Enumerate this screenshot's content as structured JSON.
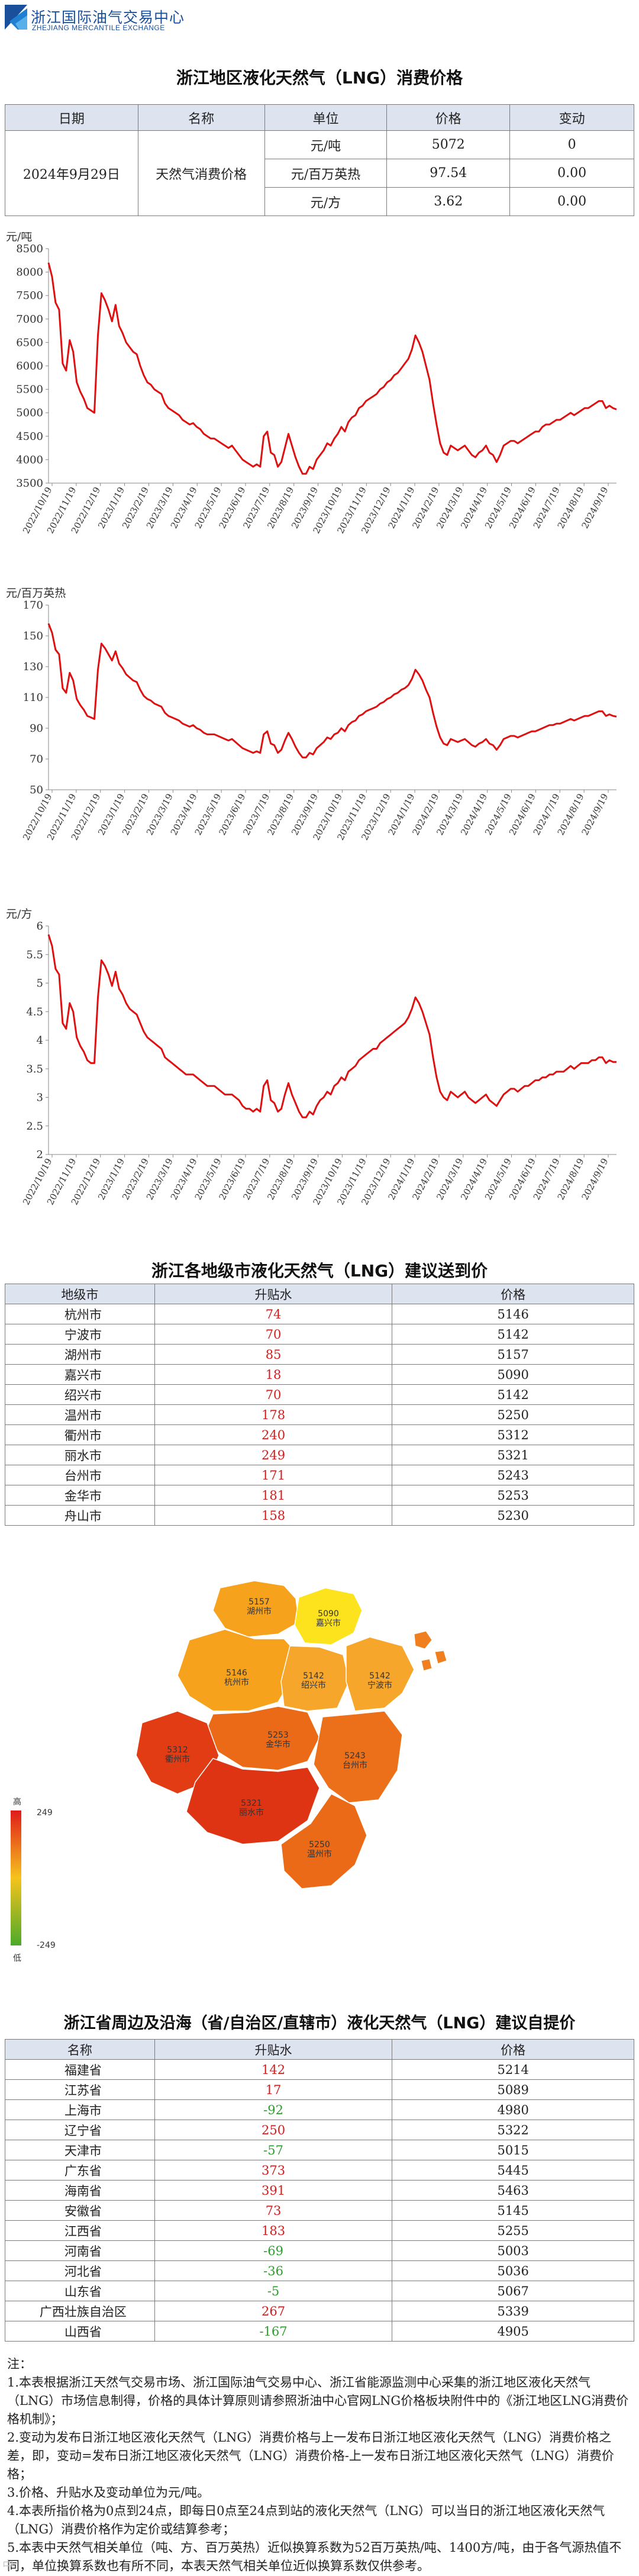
{
  "header": {
    "org_cn": "浙江国际油气交易中心",
    "org_en": "ZHEJIANG MERCANTILE EXCHANGE"
  },
  "consumption": {
    "title": "浙江地区液化天然气（LNG）消费价格",
    "headers": [
      "日期",
      "名称",
      "单位",
      "价格",
      "变动"
    ],
    "date": "2024年9月29日",
    "name": "天然气消费价格",
    "rows": [
      {
        "unit": "元/吨",
        "price": "5072",
        "change": "0"
      },
      {
        "unit": "元/百万英热",
        "price": "97.54",
        "change": "0.00"
      },
      {
        "unit": "元/方",
        "price": "3.62",
        "change": "0.00"
      }
    ]
  },
  "chart_data": [
    {
      "type": "line",
      "unit_label": "元/吨",
      "ylim": [
        3500,
        8500
      ],
      "yticks": [
        3500,
        4000,
        4500,
        5000,
        5500,
        6000,
        6500,
        7000,
        7500,
        8000,
        8500
      ],
      "x_labels": [
        "2022/10/19",
        "2022/11/19",
        "2022/12/19",
        "2023/1/19",
        "2023/2/19",
        "2023/3/19",
        "2023/4/19",
        "2023/5/19",
        "2023/6/19",
        "2023/7/19",
        "2023/8/19",
        "2023/9/19",
        "2023/10/19",
        "2023/11/19",
        "2023/12/19",
        "2024/1/19",
        "2024/2/19",
        "2024/3/19",
        "2024/4/19",
        "2024/5/19",
        "2024/6/19",
        "2024/7/19",
        "2024/8/19",
        "2024/9/19"
      ],
      "color": "#dd1111",
      "series": [
        {
          "values": [
            8200,
            7900,
            7350,
            7200,
            6050,
            5900,
            6550,
            6300,
            5650,
            5450,
            5300,
            5100,
            5050,
            5000,
            6650,
            7550,
            7400,
            7200,
            6950,
            7300,
            6850,
            6700,
            6500,
            6400,
            6300,
            6250,
            6000,
            5800,
            5650,
            5600,
            5500,
            5450,
            5400,
            5200,
            5100,
            5050,
            5000,
            4950,
            4850,
            4800,
            4750,
            4780,
            4700,
            4650,
            4550,
            4500,
            4450,
            4450,
            4400,
            4350,
            4300,
            4250,
            4300,
            4200,
            4100,
            4000,
            3950,
            3900,
            3850,
            3900,
            3850,
            4500,
            4600,
            4150,
            4100,
            3850,
            3950,
            4250,
            4550,
            4300,
            4050,
            3850,
            3700,
            3700,
            3850,
            3800,
            4000,
            4100,
            4200,
            4350,
            4300,
            4450,
            4550,
            4700,
            4600,
            4800,
            4900,
            4950,
            5100,
            5150,
            5250,
            5300,
            5350,
            5400,
            5500,
            5550,
            5650,
            5700,
            5800,
            5850,
            5950,
            6050,
            6150,
            6350,
            6650,
            6500,
            6300,
            6000,
            5700,
            5200,
            4750,
            4350,
            4150,
            4100,
            4300,
            4250,
            4200,
            4250,
            4300,
            4200,
            4100,
            4050,
            4150,
            4200,
            4300,
            4150,
            4100,
            3950,
            4100,
            4300,
            4350,
            4400,
            4400,
            4350,
            4400,
            4450,
            4500,
            4550,
            4600,
            4600,
            4700,
            4750,
            4750,
            4800,
            4850,
            4850,
            4900,
            4950,
            5000,
            4950,
            5000,
            5050,
            5100,
            5100,
            5150,
            5200,
            5250,
            5250,
            5100,
            5150,
            5100,
            5072
          ]
        }
      ]
    },
    {
      "type": "line",
      "unit_label": "元/百万英热",
      "ylim": [
        50,
        170
      ],
      "yticks": [
        50,
        70,
        90,
        110,
        130,
        150,
        170
      ],
      "x_labels": [
        "2022/10/19",
        "2022/11/19",
        "2022/12/19",
        "2023/1/19",
        "2023/2/19",
        "2023/3/19",
        "2023/4/19",
        "2023/5/19",
        "2023/6/19",
        "2023/7/19",
        "2023/8/19",
        "2023/9/19",
        "2023/10/19",
        "2023/11/19",
        "2023/12/19",
        "2024/1/19",
        "2024/2/19",
        "2024/3/19",
        "2024/4/19",
        "2024/5/19",
        "2024/6/19",
        "2024/7/19",
        "2024/8/19",
        "2024/9/19"
      ],
      "color": "#dd1111",
      "series": [
        {
          "values": [
            158,
            152,
            141,
            138,
            116,
            113,
            126,
            121,
            109,
            105,
            102,
            98,
            97,
            96,
            128,
            145,
            142,
            138,
            134,
            140,
            132,
            129,
            125,
            123,
            121,
            120,
            115,
            111,
            109,
            108,
            106,
            105,
            104,
            100,
            98,
            97,
            96,
            95,
            93,
            92,
            91,
            92,
            90,
            89,
            87,
            86,
            86,
            86,
            85,
            84,
            83,
            82,
            83,
            81,
            79,
            77,
            76,
            75,
            74,
            75,
            74,
            86,
            88,
            80,
            79,
            74,
            76,
            82,
            87,
            83,
            78,
            74,
            71,
            71,
            74,
            73,
            77,
            79,
            81,
            84,
            83,
            86,
            87,
            90,
            88,
            92,
            94,
            95,
            98,
            99,
            101,
            102,
            103,
            104,
            106,
            107,
            109,
            110,
            112,
            113,
            115,
            116,
            118,
            122,
            128,
            125,
            121,
            115,
            110,
            100,
            91,
            84,
            80,
            79,
            83,
            82,
            81,
            82,
            83,
            81,
            79,
            78,
            80,
            81,
            83,
            80,
            79,
            76,
            79,
            83,
            84,
            85,
            85,
            84,
            85,
            86,
            87,
            88,
            88,
            89,
            90,
            91,
            92,
            92,
            93,
            93,
            94,
            95,
            96,
            95,
            96,
            97,
            98,
            98,
            99,
            100,
            101,
            101,
            98,
            99,
            98,
            97.54
          ]
        }
      ]
    },
    {
      "type": "line",
      "unit_label": "元/方",
      "ylim": [
        2,
        6
      ],
      "yticks": [
        2,
        2.5,
        3,
        3.5,
        4,
        4.5,
        5,
        5.5,
        6
      ],
      "x_labels": [
        "2022/10/19",
        "2022/11/19",
        "2022/12/19",
        "2023/1/19",
        "2023/2/19",
        "2023/3/19",
        "2023/4/19",
        "2023/5/19",
        "2023/6/19",
        "2023/7/19",
        "2023/8/19",
        "2023/9/19",
        "2023/10/19",
        "2023/11/19",
        "2023/12/19",
        "2024/1/19",
        "2024/2/19",
        "2024/3/19",
        "2024/4/19",
        "2024/5/19",
        "2024/6/19",
        "2024/7/19",
        "2024/8/19",
        "2024/9/19"
      ],
      "color": "#dd1111",
      "series": [
        {
          "values": [
            5.85,
            5.65,
            5.25,
            5.15,
            4.3,
            4.2,
            4.65,
            4.5,
            4.05,
            3.9,
            3.8,
            3.65,
            3.6,
            3.6,
            4.75,
            5.4,
            5.3,
            5.15,
            4.95,
            5.2,
            4.9,
            4.8,
            4.65,
            4.55,
            4.5,
            4.45,
            4.3,
            4.15,
            4.05,
            4.0,
            3.95,
            3.9,
            3.85,
            3.7,
            3.65,
            3.6,
            3.55,
            3.5,
            3.45,
            3.4,
            3.4,
            3.4,
            3.35,
            3.3,
            3.25,
            3.2,
            3.2,
            3.2,
            3.15,
            3.1,
            3.05,
            3.05,
            3.05,
            3.0,
            2.95,
            2.85,
            2.8,
            2.8,
            2.75,
            2.8,
            2.75,
            3.2,
            3.3,
            2.95,
            2.9,
            2.75,
            2.8,
            3.05,
            3.25,
            3.05,
            2.9,
            2.75,
            2.65,
            2.65,
            2.75,
            2.7,
            2.85,
            2.95,
            3.0,
            3.1,
            3.05,
            3.2,
            3.25,
            3.35,
            3.3,
            3.45,
            3.5,
            3.55,
            3.65,
            3.7,
            3.75,
            3.8,
            3.85,
            3.85,
            3.95,
            4.0,
            4.05,
            4.1,
            4.15,
            4.2,
            4.25,
            4.3,
            4.4,
            4.55,
            4.75,
            4.65,
            4.5,
            4.3,
            4.1,
            3.7,
            3.35,
            3.1,
            3.0,
            2.95,
            3.1,
            3.05,
            3.0,
            3.05,
            3.1,
            3.0,
            2.95,
            2.9,
            2.95,
            3.0,
            3.05,
            2.95,
            2.9,
            2.85,
            2.95,
            3.05,
            3.1,
            3.15,
            3.15,
            3.1,
            3.15,
            3.2,
            3.2,
            3.25,
            3.3,
            3.3,
            3.35,
            3.35,
            3.4,
            3.4,
            3.45,
            3.45,
            3.45,
            3.5,
            3.55,
            3.5,
            3.55,
            3.6,
            3.6,
            3.6,
            3.65,
            3.65,
            3.7,
            3.7,
            3.6,
            3.65,
            3.62,
            3.62
          ]
        }
      ]
    }
  ],
  "cities": {
    "title": "浙江各地级市液化天然气（LNG）建议送到价",
    "headers": [
      "地级市",
      "升贴水",
      "价格"
    ],
    "rows": [
      {
        "name": "杭州市",
        "diff": "74",
        "price": "5146"
      },
      {
        "name": "宁波市",
        "diff": "70",
        "price": "5142"
      },
      {
        "name": "湖州市",
        "diff": "85",
        "price": "5157"
      },
      {
        "name": "嘉兴市",
        "diff": "18",
        "price": "5090"
      },
      {
        "name": "绍兴市",
        "diff": "70",
        "price": "5142"
      },
      {
        "name": "温州市",
        "diff": "178",
        "price": "5250"
      },
      {
        "name": "衢州市",
        "diff": "240",
        "price": "5312"
      },
      {
        "name": "丽水市",
        "diff": "249",
        "price": "5321"
      },
      {
        "name": "台州市",
        "diff": "171",
        "price": "5243"
      },
      {
        "name": "金华市",
        "diff": "181",
        "price": "5253"
      },
      {
        "name": "舟山市",
        "diff": "158",
        "price": "5230"
      }
    ]
  },
  "map": {
    "legend_high_label": "高",
    "legend_low_label": "低",
    "legend_max": "249",
    "legend_min": "-249",
    "regions": [
      {
        "price": "5157",
        "city": "湖州市",
        "color": "#f7a21c"
      },
      {
        "price": "5090",
        "city": "嘉兴市",
        "color": "#fde31e"
      },
      {
        "price": "5146",
        "city": "杭州市",
        "color": "#f7a21c"
      },
      {
        "price": "5142",
        "city": "绍兴市",
        "color": "#f6a62a"
      },
      {
        "price": "5142",
        "city": "宁波市",
        "color": "#f6a62a"
      },
      {
        "price": "5253",
        "city": "金华市",
        "color": "#ea6a17"
      },
      {
        "price": "5312",
        "city": "衢州市",
        "color": "#e23c14"
      },
      {
        "price": "5243",
        "city": "台州市",
        "color": "#ec6f1a"
      },
      {
        "price": "5321",
        "city": "丽水市",
        "color": "#df3414"
      },
      {
        "price": "5250",
        "city": "温州市",
        "color": "#ea6a17"
      },
      {
        "price": "5230",
        "city": "舟山市",
        "color": "#f07f20"
      }
    ]
  },
  "provinces": {
    "title": "浙江省周边及沿海（省/自治区/直辖市）液化天然气（LNG）建议自提价",
    "headers": [
      "名称",
      "升贴水",
      "价格"
    ],
    "rows": [
      {
        "name": "福建省",
        "diff": "142",
        "price": "5214"
      },
      {
        "name": "江苏省",
        "diff": "17",
        "price": "5089"
      },
      {
        "name": "上海市",
        "diff": "-92",
        "price": "4980"
      },
      {
        "name": "辽宁省",
        "diff": "250",
        "price": "5322"
      },
      {
        "name": "天津市",
        "diff": "-57",
        "price": "5015"
      },
      {
        "name": "广东省",
        "diff": "373",
        "price": "5445"
      },
      {
        "name": "海南省",
        "diff": "391",
        "price": "5463"
      },
      {
        "name": "安徽省",
        "diff": "73",
        "price": "5145"
      },
      {
        "name": "江西省",
        "diff": "183",
        "price": "5255"
      },
      {
        "name": "河南省",
        "diff": "-69",
        "price": "5003"
      },
      {
        "name": "河北省",
        "diff": "-36",
        "price": "5036"
      },
      {
        "name": "山东省",
        "diff": "-5",
        "price": "5067"
      },
      {
        "name": "广西壮族自治区",
        "diff": "267",
        "price": "5339"
      },
      {
        "name": "山西省",
        "diff": "-167",
        "price": "4905"
      }
    ]
  },
  "notes": [
    "注：",
    "1.本表根据浙江天然气交易市场、浙江国际油气交易中心、浙江省能源监测中心采集的浙江地区液化天然气（LNG）市场信息制得，价格的具体计算原则请参照浙油中心官网LNG价格板块附件中的《浙江地区LNG消费价格机制》；",
    "2.变动为发布日浙江地区液化天然气（LNG）消费价格与上一发布日浙江地区液化天然气（LNG）消费价格之差，即，变动=发布日浙江地区液化天然气（LNG）消费价格-上一发布日浙江地区液化天然气（LNG）消费价格；",
    "3.价格、升贴水及变动单位为元/吨。",
    "4.本表所指价格为0点到24点，即每日0点至24点到站的液化天然气（LNG）可以当日的浙江地区液化天然气（LNG）消费价格作为定价或结算参考；",
    "5.本表中天然气相关单位（吨、方、百万英热）近似换算系数为52百万英热/吨、1400方/吨，由于各气源热值不同，单位换算系数也有所不同，本表天然气相关单位近似换算系数仅供参考。"
  ],
  "watermark": "中"
}
